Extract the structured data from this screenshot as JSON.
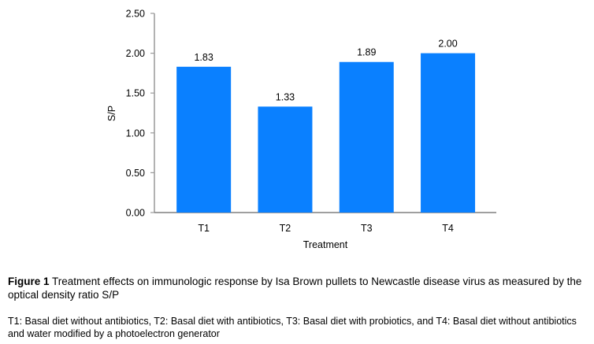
{
  "chart_data": {
    "type": "bar",
    "categories": [
      "T1",
      "T2",
      "T3",
      "T4"
    ],
    "values": [
      1.83,
      1.33,
      1.89,
      2.0
    ],
    "data_labels": [
      "1.83",
      "1.33",
      "1.89",
      "2.00"
    ],
    "xlabel": "Treatment",
    "ylabel": "S/P",
    "ylim": [
      0,
      2.5
    ],
    "yticks": [
      0,
      0.5,
      1.0,
      1.5,
      2.0,
      2.5
    ],
    "ytick_labels": [
      "0.00",
      "0.50",
      "1.00",
      "1.50",
      "2.00",
      "2.50"
    ],
    "grid": false,
    "bar_color": "#0a80ff",
    "axis_color": "#999999"
  },
  "caption": {
    "label": "Figure 1",
    "text": " Treatment effects on immunologic response by Isa Brown pullets to Newcastle disease virus as measured by the optical density ratio S/P",
    "footnote": "T1: Basal diet without antibiotics, T2: Basal diet with antibiotics, T3: Basal diet with probiotics, and T4: Basal diet without antibiotics and water modified by a photoelectron generator"
  }
}
